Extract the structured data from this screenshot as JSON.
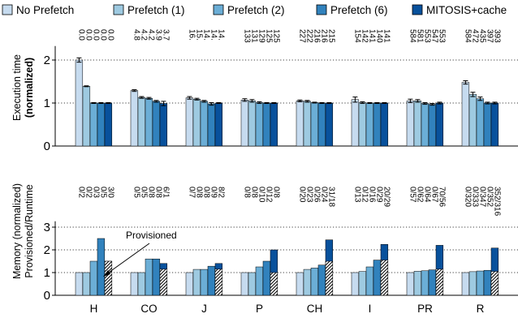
{
  "chart_data": {
    "type": "bar",
    "legend": {
      "placement": "top",
      "entries": [
        {
          "label": "No Prefetch",
          "color": "#c6dbef"
        },
        {
          "label": "Prefetch (1)",
          "color": "#9ecae1"
        },
        {
          "label": "Prefetch (2)",
          "color": "#6baed6"
        },
        {
          "label": "Prefetch (6)",
          "color": "#3182bd"
        },
        {
          "label": "MITOSIS+cache",
          "color": "#08519c"
        }
      ]
    },
    "categories": [
      "H",
      "CO",
      "J",
      "P",
      "CH",
      "I",
      "PR",
      "R"
    ],
    "top": {
      "ylabel_line1": "Execution time",
      "ylabel_line2": "(normalized)",
      "ylim": [
        0,
        2.4
      ],
      "yticks": [
        "0",
        "1",
        "2"
      ],
      "grid": true,
      "series": [
        {
          "name": "No Prefetch",
          "values": [
            2.0,
            1.29,
            1.12,
            1.07,
            1.05,
            1.08,
            1.05,
            1.48
          ],
          "errors": [
            0.05,
            0.02,
            0.03,
            0.03,
            0.02,
            0.06,
            0.04,
            0.04
          ]
        },
        {
          "name": "Prefetch (1)",
          "values": [
            1.39,
            1.13,
            1.09,
            1.05,
            1.04,
            1.01,
            1.05,
            1.2
          ],
          "errors": [
            0.01,
            0.02,
            0.02,
            0.03,
            0.02,
            0.02,
            0.03,
            0.05
          ]
        },
        {
          "name": "Prefetch (2)",
          "values": [
            1.0,
            1.11,
            1.04,
            1.01,
            1.01,
            1.0,
            0.99,
            1.1
          ],
          "errors": [
            0.01,
            0.02,
            0.02,
            0.02,
            0.01,
            0.01,
            0.02,
            0.04
          ]
        },
        {
          "name": "Prefetch (6)",
          "values": [
            1.0,
            1.04,
            0.98,
            1.0,
            1.0,
            1.0,
            0.97,
            1.0
          ],
          "errors": [
            0.01,
            0.02,
            0.03,
            0.01,
            0.01,
            0.01,
            0.02,
            0.02
          ]
        },
        {
          "name": "MITOSIS+cache",
          "values": [
            1.0,
            0.99,
            1.0,
            1.0,
            1.0,
            1.0,
            1.0,
            1.0
          ],
          "errors": [
            0.01,
            0.05,
            0.01,
            0.01,
            0.01,
            0.01,
            0.02,
            0.02
          ]
        }
      ],
      "annotations": [
        [
          "0.0",
          "0.0",
          "0.0",
          "0.0",
          "0.0"
        ],
        [
          "4.8",
          "4.2",
          "4.2",
          "3.9",
          "3.7"
        ],
        [
          "16.",
          "15.",
          "14.",
          "14.",
          "14."
        ],
        [
          "133",
          "131",
          "129",
          "125",
          "125"
        ],
        [
          "227",
          "222",
          "216",
          "216",
          "215"
        ],
        [
          "154",
          "142",
          "141",
          "140",
          "141"
        ],
        [
          "584",
          "581",
          "553",
          "547",
          "553"
        ],
        [
          "584",
          "472",
          "435",
          "397",
          "393"
        ]
      ]
    },
    "bottom": {
      "ylabel_line1": "Memory (normalized)",
      "ylabel_line2": "Provisioned/Runtime",
      "ylim": [
        0,
        3.4
      ],
      "yticks": [
        "0",
        "1",
        "2",
        "3"
      ],
      "grid": true,
      "series": [
        {
          "name": "No Prefetch",
          "values": [
            1.0,
            1.0,
            1.0,
            1.0,
            1.0,
            1.0,
            1.0,
            1.0
          ]
        },
        {
          "name": "Prefetch (1)",
          "values": [
            1.0,
            1.0,
            1.14,
            1.0,
            1.14,
            1.05,
            1.06,
            1.04
          ]
        },
        {
          "name": "Prefetch (2)",
          "values": [
            1.5,
            1.6,
            1.14,
            1.25,
            1.2,
            1.25,
            1.08,
            1.07
          ]
        },
        {
          "name": "Prefetch (6)",
          "values": [
            2.5,
            1.6,
            1.28,
            1.5,
            1.33,
            1.55,
            1.12,
            1.1
          ]
        },
        {
          "name": "MITOSIS+cache",
          "provisioned": [
            1.5,
            1.15,
            1.15,
            1.0,
            1.5,
            1.55,
            1.15,
            1.05
          ],
          "values": [
            1.5,
            1.4,
            1.4,
            2.0,
            2.44,
            2.24,
            2.2,
            2.08
          ]
        }
      ],
      "annotation_label": "Provisioned",
      "annotations": [
        [
          "0/2",
          "0/2",
          "0/3",
          "0/5",
          "3/0"
        ],
        [
          "0/5",
          "0/5",
          "0/8",
          "0/8",
          "6/1"
        ],
        [
          "0/7",
          "0/8",
          "0/8",
          "0/9",
          "8/2"
        ],
        [
          "0/8",
          "0/8",
          "0/10",
          "0/12",
          "0/8"
        ],
        [
          "0/20",
          "0/23",
          "0/26",
          "0/24",
          "31/18"
        ],
        [
          "0/13",
          "0/12",
          "0/16",
          "0/29",
          "20/29"
        ],
        [
          "0/57",
          "0/62",
          "0/64",
          "0/67",
          "70/56"
        ],
        [
          "0/320",
          "0/333",
          "0/347",
          "0/352",
          "352/316"
        ]
      ]
    }
  }
}
